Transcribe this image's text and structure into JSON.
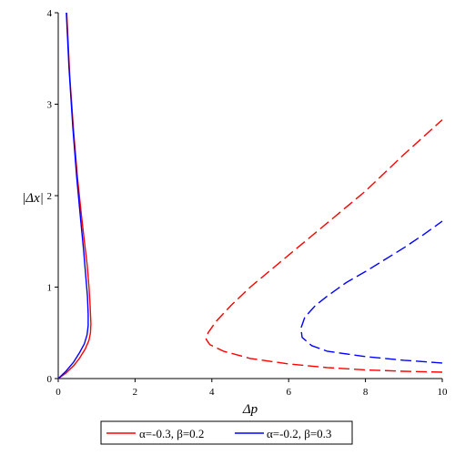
{
  "chart_data": {
    "type": "line",
    "xlabel": "Δp",
    "ylabel": "|Δx|",
    "xlim": [
      0,
      10
    ],
    "ylim": [
      0,
      4
    ],
    "xticks": [
      "0",
      "2",
      "4",
      "6",
      "8",
      "10"
    ],
    "yticks": [
      "0",
      "1",
      "2",
      "3",
      "4"
    ],
    "grid": false,
    "legend_position": "bottom",
    "series": [
      {
        "name": "α=-0.3, β=0.2",
        "color": "#ff0000",
        "segments": [
          {
            "style": "solid",
            "points": [
              [
                0.0,
                0.0
              ],
              [
                0.2,
                0.06
              ],
              [
                0.4,
                0.14
              ],
              [
                0.55,
                0.22
              ],
              [
                0.7,
                0.32
              ],
              [
                0.8,
                0.42
              ],
              [
                0.84,
                0.5
              ],
              [
                0.85,
                0.6
              ],
              [
                0.83,
                0.8
              ],
              [
                0.8,
                1.0
              ],
              [
                0.75,
                1.25
              ],
              [
                0.68,
                1.5
              ],
              [
                0.6,
                1.8
              ],
              [
                0.5,
                2.2
              ],
              [
                0.4,
                2.7
              ],
              [
                0.3,
                3.3
              ],
              [
                0.22,
                4.0
              ]
            ]
          },
          {
            "style": "dashed",
            "points": [
              [
                10.0,
                0.07
              ],
              [
                9.0,
                0.08
              ],
              [
                8.0,
                0.095
              ],
              [
                7.0,
                0.12
              ],
              [
                6.0,
                0.16
              ],
              [
                5.0,
                0.22
              ],
              [
                4.3,
                0.3
              ],
              [
                3.95,
                0.37
              ],
              [
                3.85,
                0.43
              ],
              [
                3.9,
                0.5
              ],
              [
                4.1,
                0.62
              ],
              [
                4.5,
                0.8
              ],
              [
                5.0,
                1.0
              ],
              [
                6.0,
                1.35
              ],
              [
                7.0,
                1.7
              ],
              [
                8.0,
                2.05
              ],
              [
                9.0,
                2.45
              ],
              [
                10.0,
                2.83
              ]
            ]
          }
        ]
      },
      {
        "name": "α=-0.2, β=0.3",
        "color": "#0000ff",
        "segments": [
          {
            "style": "solid",
            "points": [
              [
                0.0,
                0.0
              ],
              [
                0.2,
                0.08
              ],
              [
                0.4,
                0.18
              ],
              [
                0.55,
                0.28
              ],
              [
                0.68,
                0.38
              ],
              [
                0.75,
                0.48
              ],
              [
                0.78,
                0.58
              ],
              [
                0.78,
                0.7
              ],
              [
                0.76,
                0.9
              ],
              [
                0.72,
                1.1
              ],
              [
                0.66,
                1.4
              ],
              [
                0.58,
                1.75
              ],
              [
                0.48,
                2.2
              ],
              [
                0.38,
                2.75
              ],
              [
                0.28,
                3.4
              ],
              [
                0.21,
                4.0
              ]
            ]
          },
          {
            "style": "dashed",
            "points": [
              [
                10.0,
                0.17
              ],
              [
                9.0,
                0.2
              ],
              [
                8.0,
                0.24
              ],
              [
                7.0,
                0.3
              ],
              [
                6.6,
                0.36
              ],
              [
                6.35,
                0.45
              ],
              [
                6.32,
                0.55
              ],
              [
                6.42,
                0.67
              ],
              [
                6.7,
                0.8
              ],
              [
                7.0,
                0.9
              ],
              [
                7.5,
                1.05
              ],
              [
                8.0,
                1.17
              ],
              [
                8.5,
                1.3
              ],
              [
                9.0,
                1.43
              ],
              [
                9.5,
                1.57
              ],
              [
                10.0,
                1.72
              ]
            ]
          }
        ]
      }
    ]
  }
}
